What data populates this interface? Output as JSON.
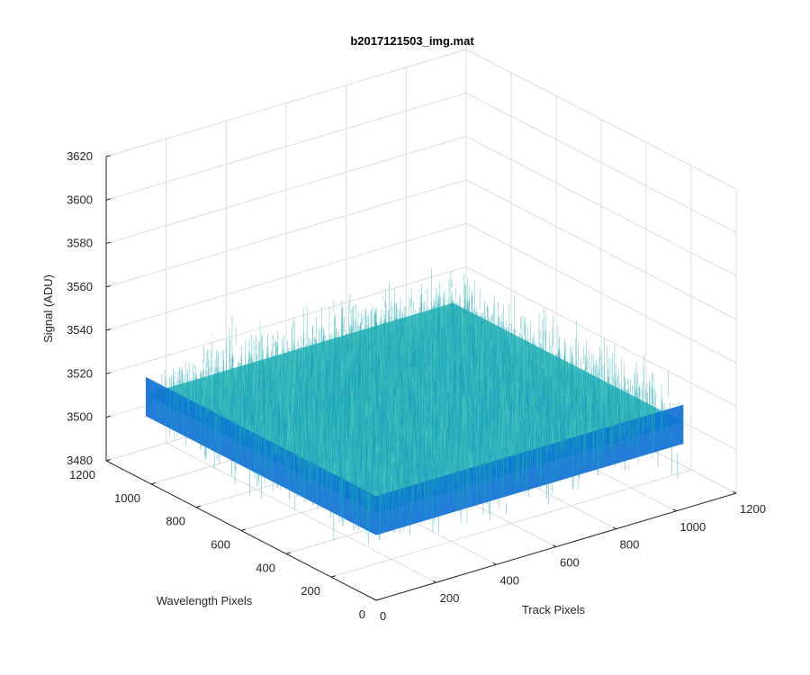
{
  "chart_data": {
    "type": "surface3d",
    "title": "b2017121503_img.mat",
    "xlabel": "Track Pixels",
    "ylabel": "Wavelength Pixels",
    "zlabel": "Signal (ADU)",
    "xlim": [
      0,
      1200
    ],
    "ylim": [
      0,
      1200
    ],
    "zlim": [
      3480,
      3620
    ],
    "x_ticks": [
      "0",
      "200",
      "400",
      "600",
      "800",
      "1000",
      "1200"
    ],
    "y_ticks": [
      "0",
      "200",
      "400",
      "600",
      "800",
      "1000",
      "1200"
    ],
    "z_ticks": [
      "3480",
      "3500",
      "3520",
      "3540",
      "3560",
      "3580",
      "3600",
      "3620"
    ],
    "surface": {
      "x_range": [
        0,
        1024
      ],
      "y_range": [
        0,
        1024
      ],
      "mean_signal": 3520,
      "signal_range": [
        3490,
        3585
      ],
      "colormap": "parula"
    },
    "grid": true,
    "box": "back-planes",
    "colors": {
      "axis": "#262626",
      "grid": "#dcdcdc",
      "low": "#0b6fd4",
      "mid": "#20b3b3",
      "high": "#c8c850"
    }
  }
}
